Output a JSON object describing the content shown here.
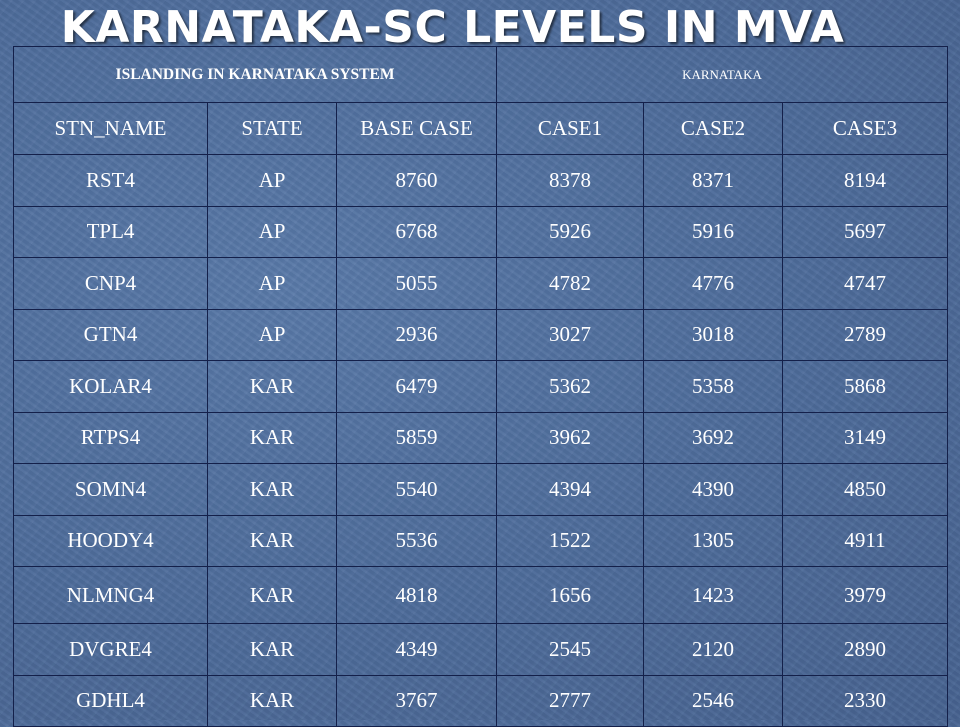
{
  "slide": {
    "title": "KARNATAKA-SC LEVELS IN MVA"
  },
  "table": {
    "group_left": "ISLANDING IN KARNATAKA SYSTEM",
    "group_right": "KARNATAKA",
    "headers": [
      "STN_NAME",
      "STATE",
      "BASE CASE",
      "CASE1",
      "CASE2",
      "CASE3"
    ],
    "rows": [
      [
        "RST4",
        "AP",
        "8760",
        "8378",
        "8371",
        "8194"
      ],
      [
        "TPL4",
        "AP",
        "6768",
        "5926",
        "5916",
        "5697"
      ],
      [
        "CNP4",
        "AP",
        "5055",
        "4782",
        "4776",
        "4747"
      ],
      [
        "GTN4",
        "AP",
        "2936",
        "3027",
        "3018",
        "2789"
      ],
      [
        "KOLAR4",
        "KAR",
        "6479",
        "5362",
        "5358",
        "5868"
      ],
      [
        "RTPS4",
        "KAR",
        "5859",
        "3962",
        "3692",
        "3149"
      ],
      [
        "SOMN4",
        "KAR",
        "5540",
        "4394",
        "4390",
        "4850"
      ],
      [
        "HOODY4",
        "KAR",
        "5536",
        "1522",
        "1305",
        "4911"
      ],
      [
        "NLMNG4",
        "KAR",
        "4818",
        "1656",
        "1423",
        "3979"
      ],
      [
        "DVGRE4",
        "KAR",
        "4349",
        "2545",
        "2120",
        "2890"
      ],
      [
        "GDHL4",
        "KAR",
        "3767",
        "2777",
        "2546",
        "2330"
      ]
    ]
  }
}
